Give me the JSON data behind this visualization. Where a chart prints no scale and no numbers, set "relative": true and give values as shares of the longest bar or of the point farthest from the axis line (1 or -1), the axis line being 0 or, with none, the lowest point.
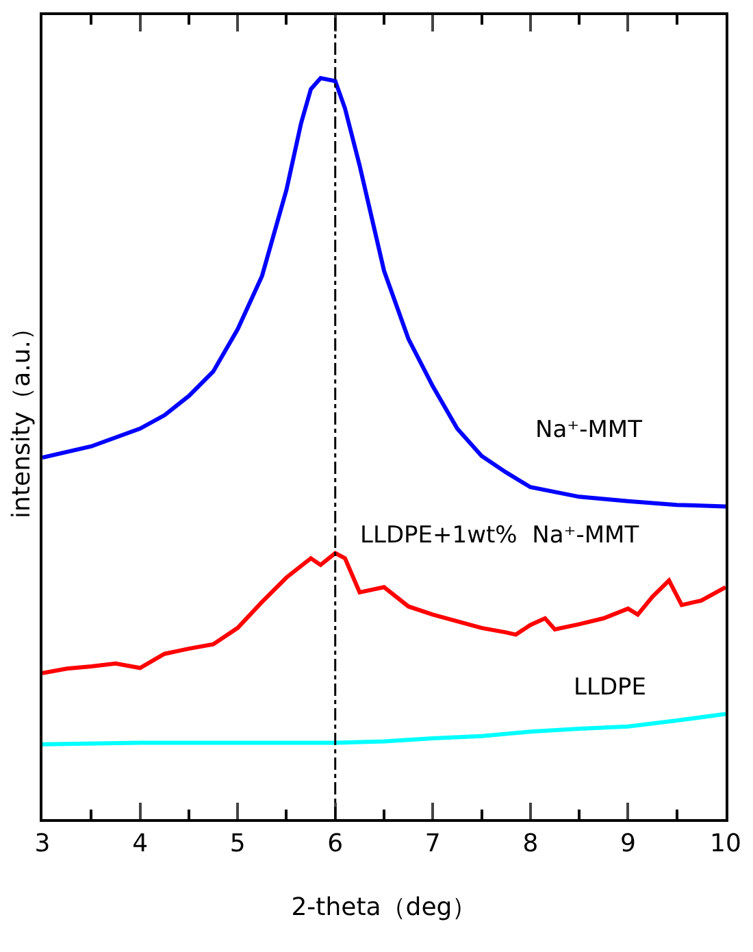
{
  "chart_data": {
    "type": "line",
    "xlabel": "2-theta（deg）",
    "ylabel": "intensity（a.u.）",
    "relative": true,
    "xlim": [
      3,
      10
    ],
    "xticks": [
      3,
      4,
      5,
      6,
      7,
      8,
      9,
      10
    ],
    "tick_labels": "x",
    "grid": false,
    "legend": false,
    "marker": "none",
    "line_style": "solid",
    "ref_lines": [
      {
        "axis": "x",
        "value": 6,
        "color": "#000000",
        "line_style": "dashdot"
      }
    ],
    "series": [
      {
        "name": "Na⁺-MMT",
        "color": "#0000ff",
        "x": [
          3,
          3.5,
          4,
          4.25,
          4.5,
          4.75,
          5,
          5.25,
          5.5,
          5.65,
          5.75,
          5.85,
          6,
          6.1,
          6.25,
          6.5,
          6.75,
          7,
          7.25,
          7.5,
          7.75,
          8,
          8.5,
          9,
          9.5,
          10
        ],
        "values": [
          0.488,
          0.503,
          0.527,
          0.545,
          0.571,
          0.604,
          0.661,
          0.733,
          0.849,
          0.939,
          0.985,
          1.0,
          0.996,
          0.959,
          0.882,
          0.74,
          0.648,
          0.584,
          0.527,
          0.49,
          0.468,
          0.448,
          0.435,
          0.429,
          0.424,
          0.422
        ]
      },
      {
        "name": "LLDPE+1wt%  Na⁺-MMT",
        "color": "#ff0000",
        "x": [
          3,
          3.25,
          3.5,
          3.75,
          4,
          4.25,
          4.5,
          4.75,
          5,
          5.25,
          5.5,
          5.75,
          5.85,
          6,
          6.1,
          6.25,
          6.5,
          6.75,
          7,
          7.25,
          7.5,
          7.75,
          7.85,
          8,
          8.15,
          8.25,
          8.5,
          8.75,
          9,
          9.1,
          9.25,
          9.42,
          9.55,
          9.75,
          10
        ],
        "values": [
          0.197,
          0.203,
          0.206,
          0.21,
          0.204,
          0.223,
          0.23,
          0.236,
          0.258,
          0.293,
          0.326,
          0.352,
          0.343,
          0.359,
          0.352,
          0.306,
          0.313,
          0.287,
          0.276,
          0.267,
          0.258,
          0.252,
          0.249,
          0.262,
          0.271,
          0.256,
          0.263,
          0.271,
          0.284,
          0.276,
          0.3,
          0.322,
          0.289,
          0.295,
          0.313
        ]
      },
      {
        "name": "LLDPE",
        "color": "#00ffff",
        "x": [
          3,
          4,
          5,
          6,
          6.5,
          7,
          7.5,
          8,
          8.5,
          9,
          9.5,
          10
        ],
        "values": [
          0.101,
          0.103,
          0.103,
          0.103,
          0.105,
          0.109,
          0.112,
          0.118,
          0.122,
          0.125,
          0.133,
          0.142
        ]
      }
    ]
  }
}
